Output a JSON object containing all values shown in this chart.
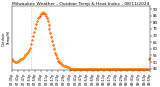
{
  "title": "Milwaukee Weather - Outdoor Temp & Heat Index - 08/11/2024",
  "ylabel": "Outdoor\nTemp/HI",
  "temp_data": [
    52,
    51,
    51,
    50,
    50,
    50,
    51,
    51,
    52,
    52,
    52,
    53,
    54,
    55,
    55,
    56,
    57,
    58,
    59,
    61,
    64,
    67,
    70,
    73,
    76,
    79,
    81,
    83,
    84,
    85,
    86,
    87,
    87,
    87,
    86,
    85,
    83,
    81,
    78,
    75,
    72,
    69,
    66,
    63,
    60,
    57,
    55,
    53,
    51,
    50,
    49,
    49,
    48,
    48,
    47,
    47,
    47,
    46,
    46,
    46,
    45,
    45,
    45,
    45,
    45,
    45,
    45,
    45,
    45,
    45,
    45,
    45,
    45,
    45,
    45,
    45,
    45,
    45,
    45,
    45,
    45,
    45,
    45,
    45,
    45,
    45,
    45,
    45,
    45,
    45,
    45,
    45,
    45,
    45,
    45,
    45,
    45,
    45,
    45,
    45,
    45,
    45,
    45,
    45,
    45,
    45,
    45,
    45,
    45,
    45,
    45,
    45,
    45,
    45,
    45,
    45,
    45,
    45,
    45,
    45,
    45,
    45,
    45,
    45,
    45,
    45,
    45,
    45,
    45,
    45,
    45,
    45,
    45,
    45,
    45,
    45,
    45,
    45,
    45,
    45,
    45,
    45,
    45,
    52,
    53
  ],
  "heat_index_data": [
    52,
    51,
    51,
    50,
    50,
    50,
    51,
    51,
    52,
    52,
    52,
    53,
    54,
    55,
    55,
    56,
    57,
    58,
    59,
    61,
    64,
    67,
    70,
    73,
    76,
    79,
    81,
    83,
    84,
    86,
    87,
    88,
    88,
    88,
    87,
    86,
    84,
    82,
    79,
    76,
    73,
    70,
    67,
    64,
    61,
    58,
    56,
    54,
    52,
    51,
    50,
    49,
    48,
    48,
    47,
    47,
    47,
    46,
    46,
    46,
    45,
    45,
    45,
    45,
    45,
    45,
    45,
    45,
    45,
    45,
    45,
    45,
    45,
    45,
    45,
    45,
    45,
    45,
    45,
    45,
    45,
    45,
    45,
    45,
    45,
    45,
    45,
    45,
    45,
    45,
    45,
    45,
    45,
    45,
    45,
    45,
    45,
    45,
    45,
    45,
    45,
    45,
    45,
    45,
    45,
    45,
    45,
    45,
    45,
    45,
    45,
    45,
    45,
    45,
    45,
    45,
    45,
    45,
    45,
    45,
    45,
    45,
    45,
    45,
    45,
    45,
    45,
    45,
    45,
    45,
    45,
    45,
    45,
    45,
    45,
    45,
    45,
    45,
    45,
    45,
    45,
    45,
    45,
    52,
    53
  ],
  "n_points": 145,
  "ylim_min": 44,
  "ylim_max": 92,
  "xlim_max": 144,
  "bg_color": "#ffffff",
  "temp_color": "#ff0000",
  "hi_color": "#ffa500",
  "vline_x": 20,
  "yticks": [
    45,
    50,
    55,
    60,
    65,
    70,
    75,
    80,
    85,
    90
  ],
  "ytick_labels": [
    "45",
    "50",
    "55",
    "60",
    "65",
    "70",
    "75",
    "80",
    "85",
    "90"
  ],
  "title_fontsize": 3.2,
  "tick_fontsize": 2.8,
  "ylabel_fontsize": 2.5,
  "xtick_every": 6
}
